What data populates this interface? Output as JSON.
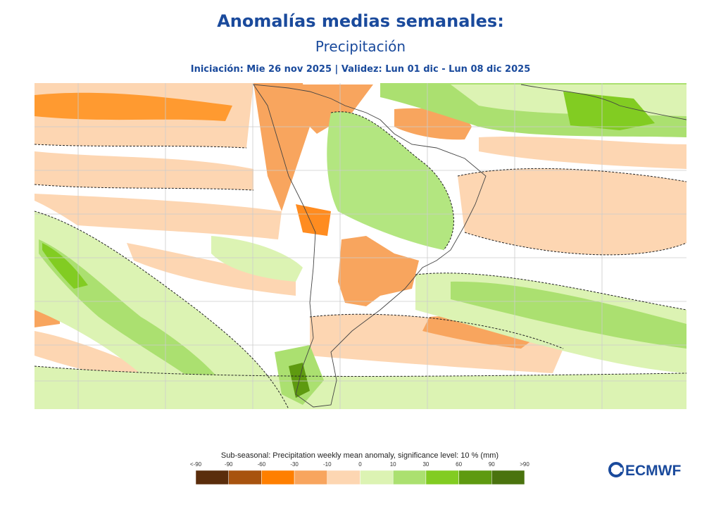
{
  "header": {
    "title": "Anomalías medias semanales:",
    "subtitle": "Precipitación",
    "info": "Iniciación: Mie 26 nov 2025 | Validez: Lun 01 dic - Lun 08 dic 2025"
  },
  "legend": {
    "title": "Sub-seasonal: Precipitation weekly mean anomaly, significance level: 10 % (mm)",
    "labels": [
      "<-90",
      "-90",
      "-60",
      "-30",
      "-10",
      "0",
      "10",
      "30",
      "60",
      "90",
      ">90"
    ],
    "colors": [
      "#5a2d0c",
      "#a8530f",
      "#ff7f00",
      "#f8a55e",
      "#fdd6b2",
      "#dcf3b3",
      "#abe070",
      "#82cc22",
      "#5e9a10",
      "#4a730e"
    ]
  },
  "logo": {
    "text": "ECMWF"
  }
}
